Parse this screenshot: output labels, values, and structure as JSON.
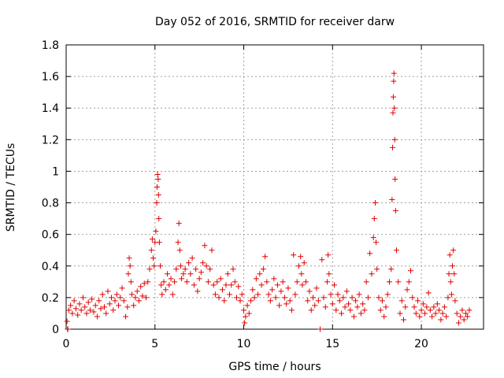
{
  "chart_data": {
    "type": "scatter",
    "title": "Day 052 of 2016, SRMTID for receiver darw",
    "xlabel": "GPS time / hours",
    "ylabel": "SRMTID / TECUs",
    "xlim": [
      0,
      23.5
    ],
    "ylim": [
      0,
      1.8
    ],
    "xticks": [
      0,
      5,
      10,
      15,
      20
    ],
    "xtick_labels": [
      "0",
      "5",
      "10",
      "15",
      "20"
    ],
    "yticks": [
      0,
      0.2,
      0.4,
      0.6,
      0.8,
      1.0,
      1.2,
      1.4,
      1.6,
      1.8
    ],
    "ytick_labels": [
      "0",
      "0.2",
      "0.4",
      "0.6",
      "0.8",
      "1",
      "1.2",
      "1.4",
      "1.6",
      "1.8"
    ],
    "grid": true,
    "marker": "+",
    "color": "#e00000",
    "series": [
      {
        "name": "SRMTID",
        "points": [
          [
            0.05,
            0.05
          ],
          [
            0.08,
            0.0
          ],
          [
            0.1,
            0.0
          ],
          [
            0.15,
            0.12
          ],
          [
            0.25,
            0.15
          ],
          [
            0.35,
            0.1
          ],
          [
            0.45,
            0.18
          ],
          [
            0.55,
            0.13
          ],
          [
            0.65,
            0.09
          ],
          [
            0.75,
            0.16
          ],
          [
            0.85,
            0.12
          ],
          [
            0.95,
            0.2
          ],
          [
            1.05,
            0.14
          ],
          [
            1.15,
            0.1
          ],
          [
            1.25,
            0.17
          ],
          [
            1.35,
            0.12
          ],
          [
            1.45,
            0.19
          ],
          [
            1.55,
            0.11
          ],
          [
            1.65,
            0.15
          ],
          [
            1.75,
            0.08
          ],
          [
            1.85,
            0.18
          ],
          [
            1.95,
            0.13
          ],
          [
            2.05,
            0.22
          ],
          [
            2.15,
            0.14
          ],
          [
            2.25,
            0.1
          ],
          [
            2.35,
            0.24
          ],
          [
            2.45,
            0.16
          ],
          [
            2.55,
            0.2
          ],
          [
            2.65,
            0.12
          ],
          [
            2.75,
            0.18
          ],
          [
            2.85,
            0.22
          ],
          [
            2.95,
            0.15
          ],
          [
            3.05,
            0.2
          ],
          [
            3.15,
            0.26
          ],
          [
            3.25,
            0.18
          ],
          [
            3.35,
            0.08
          ],
          [
            3.45,
            0.14
          ],
          [
            3.5,
            0.35
          ],
          [
            3.55,
            0.45
          ],
          [
            3.6,
            0.4
          ],
          [
            3.65,
            0.3
          ],
          [
            3.7,
            0.22
          ],
          [
            3.8,
            0.15
          ],
          [
            3.9,
            0.2
          ],
          [
            4.0,
            0.24
          ],
          [
            4.1,
            0.18
          ],
          [
            4.2,
            0.27
          ],
          [
            4.3,
            0.21
          ],
          [
            4.4,
            0.29
          ],
          [
            4.5,
            0.2
          ],
          [
            4.6,
            0.3
          ],
          [
            4.7,
            0.38
          ],
          [
            4.8,
            0.5
          ],
          [
            4.85,
            0.57
          ],
          [
            4.9,
            0.45
          ],
          [
            4.95,
            0.4
          ],
          [
            5.0,
            0.55
          ],
          [
            5.05,
            0.62
          ],
          [
            5.1,
            0.8
          ],
          [
            5.12,
            0.9
          ],
          [
            5.15,
            0.98
          ],
          [
            5.18,
            0.95
          ],
          [
            5.2,
            0.85
          ],
          [
            5.22,
            0.7
          ],
          [
            5.25,
            0.55
          ],
          [
            5.3,
            0.4
          ],
          [
            5.35,
            0.28
          ],
          [
            5.4,
            0.22
          ],
          [
            5.5,
            0.3
          ],
          [
            5.6,
            0.25
          ],
          [
            5.7,
            0.35
          ],
          [
            5.8,
            0.28
          ],
          [
            5.9,
            0.32
          ],
          [
            6.0,
            0.22
          ],
          [
            6.1,
            0.3
          ],
          [
            6.2,
            0.38
          ],
          [
            6.3,
            0.55
          ],
          [
            6.35,
            0.67
          ],
          [
            6.4,
            0.5
          ],
          [
            6.45,
            0.4
          ],
          [
            6.5,
            0.32
          ],
          [
            6.6,
            0.35
          ],
          [
            6.7,
            0.38
          ],
          [
            6.8,
            0.3
          ],
          [
            6.9,
            0.42
          ],
          [
            7.0,
            0.35
          ],
          [
            7.1,
            0.45
          ],
          [
            7.2,
            0.28
          ],
          [
            7.3,
            0.38
          ],
          [
            7.4,
            0.24
          ],
          [
            7.5,
            0.32
          ],
          [
            7.6,
            0.36
          ],
          [
            7.7,
            0.42
          ],
          [
            7.8,
            0.53
          ],
          [
            7.9,
            0.4
          ],
          [
            8.0,
            0.3
          ],
          [
            8.1,
            0.38
          ],
          [
            8.2,
            0.5
          ],
          [
            8.3,
            0.28
          ],
          [
            8.4,
            0.22
          ],
          [
            8.5,
            0.3
          ],
          [
            8.6,
            0.2
          ],
          [
            8.7,
            0.32
          ],
          [
            8.8,
            0.25
          ],
          [
            8.9,
            0.18
          ],
          [
            9.0,
            0.28
          ],
          [
            9.1,
            0.35
          ],
          [
            9.2,
            0.22
          ],
          [
            9.3,
            0.28
          ],
          [
            9.4,
            0.38
          ],
          [
            9.5,
            0.3
          ],
          [
            9.6,
            0.2
          ],
          [
            9.7,
            0.27
          ],
          [
            9.8,
            0.18
          ],
          [
            9.9,
            0.22
          ],
          [
            10.0,
            0.12
          ],
          [
            10.05,
            0.04
          ],
          [
            10.1,
            0.08
          ],
          [
            10.2,
            0.15
          ],
          [
            10.3,
            0.1
          ],
          [
            10.4,
            0.18
          ],
          [
            10.5,
            0.25
          ],
          [
            10.6,
            0.2
          ],
          [
            10.7,
            0.32
          ],
          [
            10.8,
            0.22
          ],
          [
            10.9,
            0.35
          ],
          [
            11.0,
            0.28
          ],
          [
            11.1,
            0.38
          ],
          [
            11.2,
            0.46
          ],
          [
            11.3,
            0.3
          ],
          [
            11.4,
            0.22
          ],
          [
            11.5,
            0.18
          ],
          [
            11.6,
            0.25
          ],
          [
            11.7,
            0.32
          ],
          [
            11.8,
            0.2
          ],
          [
            11.9,
            0.28
          ],
          [
            12.0,
            0.15
          ],
          [
            12.1,
            0.24
          ],
          [
            12.2,
            0.3
          ],
          [
            12.3,
            0.2
          ],
          [
            12.4,
            0.16
          ],
          [
            12.5,
            0.26
          ],
          [
            12.6,
            0.18
          ],
          [
            12.7,
            0.12
          ],
          [
            12.8,
            0.47
          ],
          [
            12.9,
            0.22
          ],
          [
            13.0,
            0.3
          ],
          [
            13.1,
            0.4
          ],
          [
            13.2,
            0.46
          ],
          [
            13.25,
            0.35
          ],
          [
            13.3,
            0.28
          ],
          [
            13.4,
            0.42
          ],
          [
            13.5,
            0.3
          ],
          [
            13.6,
            0.18
          ],
          [
            13.7,
            0.24
          ],
          [
            13.8,
            0.12
          ],
          [
            13.9,
            0.2
          ],
          [
            14.0,
            0.15
          ],
          [
            14.1,
            0.26
          ],
          [
            14.2,
            0.18
          ],
          [
            14.3,
            0.0
          ],
          [
            14.4,
            0.44
          ],
          [
            14.5,
            0.2
          ],
          [
            14.6,
            0.14
          ],
          [
            14.7,
            0.3
          ],
          [
            14.75,
            0.47
          ],
          [
            14.8,
            0.35
          ],
          [
            14.9,
            0.22
          ],
          [
            15.0,
            0.16
          ],
          [
            15.1,
            0.28
          ],
          [
            15.2,
            0.12
          ],
          [
            15.3,
            0.22
          ],
          [
            15.4,
            0.18
          ],
          [
            15.5,
            0.1
          ],
          [
            15.6,
            0.2
          ],
          [
            15.7,
            0.14
          ],
          [
            15.8,
            0.24
          ],
          [
            15.9,
            0.16
          ],
          [
            16.0,
            0.12
          ],
          [
            16.1,
            0.2
          ],
          [
            16.2,
            0.08
          ],
          [
            16.3,
            0.18
          ],
          [
            16.4,
            0.14
          ],
          [
            16.5,
            0.22
          ],
          [
            16.6,
            0.1
          ],
          [
            16.7,
            0.16
          ],
          [
            16.8,
            0.12
          ],
          [
            16.9,
            0.3
          ],
          [
            17.0,
            0.2
          ],
          [
            17.1,
            0.48
          ],
          [
            17.2,
            0.35
          ],
          [
            17.3,
            0.58
          ],
          [
            17.35,
            0.7
          ],
          [
            17.4,
            0.8
          ],
          [
            17.45,
            0.55
          ],
          [
            17.5,
            0.38
          ],
          [
            17.6,
            0.2
          ],
          [
            17.7,
            0.12
          ],
          [
            17.8,
            0.18
          ],
          [
            17.9,
            0.08
          ],
          [
            18.0,
            0.14
          ],
          [
            18.1,
            0.22
          ],
          [
            18.2,
            0.3
          ],
          [
            18.3,
            0.38
          ],
          [
            18.35,
            0.82
          ],
          [
            18.38,
            1.15
          ],
          [
            18.4,
            1.37
          ],
          [
            18.42,
            1.47
          ],
          [
            18.44,
            1.57
          ],
          [
            18.46,
            1.62
          ],
          [
            18.48,
            1.4
          ],
          [
            18.5,
            1.2
          ],
          [
            18.52,
            0.95
          ],
          [
            18.55,
            0.75
          ],
          [
            18.6,
            0.5
          ],
          [
            18.7,
            0.3
          ],
          [
            18.8,
            0.1
          ],
          [
            18.9,
            0.18
          ],
          [
            19.0,
            0.06
          ],
          [
            19.1,
            0.14
          ],
          [
            19.2,
            0.25
          ],
          [
            19.3,
            0.3
          ],
          [
            19.4,
            0.37
          ],
          [
            19.5,
            0.2
          ],
          [
            19.6,
            0.14
          ],
          [
            19.7,
            0.1
          ],
          [
            19.8,
            0.18
          ],
          [
            19.9,
            0.08
          ],
          [
            20.0,
            0.12
          ],
          [
            20.1,
            0.16
          ],
          [
            20.2,
            0.1
          ],
          [
            20.3,
            0.14
          ],
          [
            20.4,
            0.23
          ],
          [
            20.5,
            0.12
          ],
          [
            20.6,
            0.08
          ],
          [
            20.7,
            0.14
          ],
          [
            20.8,
            0.1
          ],
          [
            20.9,
            0.16
          ],
          [
            21.0,
            0.12
          ],
          [
            21.1,
            0.06
          ],
          [
            21.2,
            0.1
          ],
          [
            21.3,
            0.14
          ],
          [
            21.4,
            0.08
          ],
          [
            21.5,
            0.2
          ],
          [
            21.55,
            0.35
          ],
          [
            21.6,
            0.47
          ],
          [
            21.65,
            0.3
          ],
          [
            21.7,
            0.22
          ],
          [
            21.75,
            0.4
          ],
          [
            21.8,
            0.5
          ],
          [
            21.85,
            0.35
          ],
          [
            21.9,
            0.18
          ],
          [
            22.0,
            0.1
          ],
          [
            22.1,
            0.04
          ],
          [
            22.2,
            0.08
          ],
          [
            22.3,
            0.12
          ],
          [
            22.4,
            0.06
          ],
          [
            22.5,
            0.1
          ],
          [
            22.6,
            0.08
          ],
          [
            22.7,
            0.12
          ]
        ]
      }
    ]
  }
}
